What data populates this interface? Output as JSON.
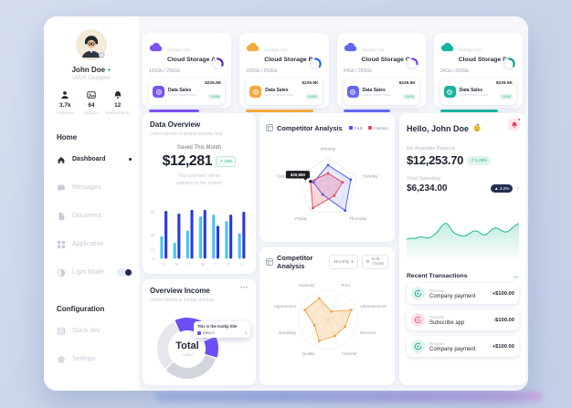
{
  "icons": {
    "menu_dots": "•••",
    "chevron_down": "▾",
    "chevron_right": "›",
    "arrow_right": "→",
    "gear": "⚙"
  },
  "sidebar": {
    "user": {
      "name": "John Doe",
      "badge": "+",
      "role": "UI/UX Designer"
    },
    "stats": [
      {
        "icon": "followers-icon",
        "value": "3.7k",
        "label": "Followers"
      },
      {
        "icon": "images-icon",
        "value": "64",
        "label": "Images"
      },
      {
        "icon": "notifications-icon",
        "value": "12",
        "label": "Notifications"
      }
    ],
    "home_header": "Home",
    "nav": [
      {
        "label": "Dashboard",
        "active": true
      },
      {
        "label": "Messages",
        "active": false
      },
      {
        "label": "Document",
        "active": false
      },
      {
        "label": "Application",
        "active": false
      }
    ],
    "light_mode_label": "Light Mode",
    "config_header": "Configuration",
    "config_nav": [
      {
        "label": "Stack dev"
      },
      {
        "label": "Settings"
      }
    ]
  },
  "storage_cards": [
    {
      "tag": "Storage Ava",
      "title": "Cloud Storage A",
      "usage": "120Gb / 250Gb",
      "sales_label": "Data Sales",
      "sales_sub": "Lorem ipsum dolor",
      "amount": "$225.5K",
      "badge": "+14%",
      "accent": "#7a52f4",
      "ring_color": "#5b21b6",
      "ring_pct": 30,
      "bar_pct": 66
    },
    {
      "tag": "Storage Ava",
      "title": "Cloud Storage B",
      "usage": "220Gb / 250Gb",
      "sales_label": "Data Sales",
      "sales_sub": "Lorem ipsum dolor",
      "amount": "$225.5K",
      "badge": "+14%",
      "accent": "#f6a83c",
      "ring_color": "#2563eb",
      "ring_pct": 34,
      "bar_pct": 88
    },
    {
      "tag": "Storage Ava",
      "title": "Cloud Storage C",
      "usage": "24Gb / 250Gb",
      "sales_label": "Data Sales",
      "sales_sub": "Lorem ipsum dolor",
      "amount": "$225.5K",
      "badge": "+14%",
      "accent": "#6366f1",
      "ring_color": "#7c3aed",
      "ring_pct": 26,
      "bar_pct": 62
    },
    {
      "tag": "Storage Ava",
      "title": "Cloud Storage D",
      "usage": "24Gb / 250Gb",
      "sales_label": "Data Sales",
      "sales_sub": "Lorem ipsum dolor",
      "amount": "$225.5K",
      "badge": "+14%",
      "accent": "#17b3a0",
      "ring_color": "#0f9488",
      "ring_pct": 32,
      "bar_pct": 76
    }
  ],
  "data_overview": {
    "title": "Data Overview",
    "subtitle": "Lorem ipsum is simply dummy text",
    "saved_label": "Saved This Month",
    "amount": "$12,281",
    "badge": "↗ 13%",
    "note_line1": "Your payment will be",
    "note_line2": "updated by the system",
    "chart_data": {
      "type": "bar",
      "categories": [
        "S",
        "M",
        "T",
        "W",
        "T",
        "F",
        "S"
      ],
      "series": [
        {
          "name": "actual",
          "color": "#45c4f5",
          "values": [
            24,
            17,
            30,
            45,
            47,
            40,
            27
          ]
        },
        {
          "name": "target",
          "color": "#2b3bd7",
          "values": [
            51,
            48,
            52,
            52,
            35,
            47,
            50
          ]
        }
      ],
      "ylim": [
        0,
        55
      ],
      "yticks": [
        50,
        25,
        10,
        0
      ]
    }
  },
  "competitor_week": {
    "title": "Competitor Analysis",
    "legend": [
      {
        "label": "F&B",
        "color": "#4353ff"
      },
      {
        "label": "Fashion",
        "color": "#e8445a"
      }
    ],
    "tooltip_value": "$20,850",
    "chart_data": {
      "type": "radar",
      "grid": "polygon",
      "max": 1,
      "axes": [
        "Monday",
        "Tuesday",
        "Thursday",
        "Friday",
        "Saturday"
      ],
      "series": [
        {
          "name": "F&B",
          "color": "#4353ff",
          "fill_opacity": 0.12,
          "values": [
            0.72,
            0.78,
            0.95,
            0.3,
            0.5
          ]
        },
        {
          "name": "Fashion",
          "color": "#e8445a",
          "fill_opacity": 0.22,
          "values": [
            0.45,
            0.5,
            0.35,
            0.85,
            0.6
          ]
        }
      ],
      "tooltip_axis": 4,
      "tooltip_series": 1
    }
  },
  "competitor_attr": {
    "title": "Competitor Analysis",
    "period": "Monthly",
    "edit_label": "Edit charts",
    "chart_data": {
      "type": "radar",
      "grid": "circle",
      "rotate_half": true,
      "max": 1,
      "axes": [
        "Price",
        "Advertisement",
        "Services",
        "Channel",
        "Quality",
        "Durability",
        "Appearance",
        "Diversity"
      ],
      "series": [
        {
          "name": "score",
          "color": "#f0a23e",
          "fill_opacity": 0.25,
          "values": [
            0.3,
            0.85,
            0.62,
            0.6,
            0.78,
            0.5,
            0.85,
            0.78
          ]
        }
      ]
    }
  },
  "overview_income": {
    "title": "Overview Income",
    "subtitle": "Lorem Ipsum is simply dummy",
    "center_title": "Total",
    "center_sub": "Label",
    "tooltip": {
      "title": "This is the tooltip title",
      "item": "Data A",
      "value": "4",
      "color": "#6d4df6"
    },
    "chart_data": {
      "type": "donut",
      "start_angle": -115,
      "segments": [
        {
          "label": "Data A",
          "value": 15,
          "color": "#6d4df6"
        },
        {
          "label": "",
          "value": 10,
          "color": "#ebecf1"
        },
        {
          "label": "",
          "value": 12,
          "color": "#6d4df6"
        },
        {
          "label": "",
          "value": 33,
          "color": "#d3d5dc"
        },
        {
          "label": "",
          "value": 30,
          "color": "#e5e7ec"
        }
      ]
    }
  },
  "account": {
    "greeting": "Hello, John Doe",
    "balance_label": "My Available Balance",
    "balance": "$12,253.70",
    "balance_badge": "↗ 1.29%",
    "spending_label": "Total Spending",
    "spending": "$6,234.00",
    "spending_badge": "▲ 3.2%",
    "chart_data": {
      "type": "area",
      "color": "#2fbf9f",
      "values": [
        42,
        45,
        43,
        48,
        46,
        44,
        50,
        58,
        72,
        76,
        60,
        52,
        50,
        48,
        54,
        60,
        58,
        50,
        53,
        63,
        66,
        60,
        56,
        60,
        70,
        74
      ]
    },
    "transactions_header": "Recent Transactions",
    "transactions": [
      {
        "kind": "Receive",
        "title": "Company payment",
        "amount": "+$100.00",
        "direction": "in"
      },
      {
        "kind": "Transfer",
        "title": "Subscribe app",
        "amount": "-$100.00",
        "direction": "out"
      },
      {
        "kind": "Receive",
        "title": "Company payment",
        "amount": "+$100.00",
        "direction": "in"
      }
    ]
  }
}
